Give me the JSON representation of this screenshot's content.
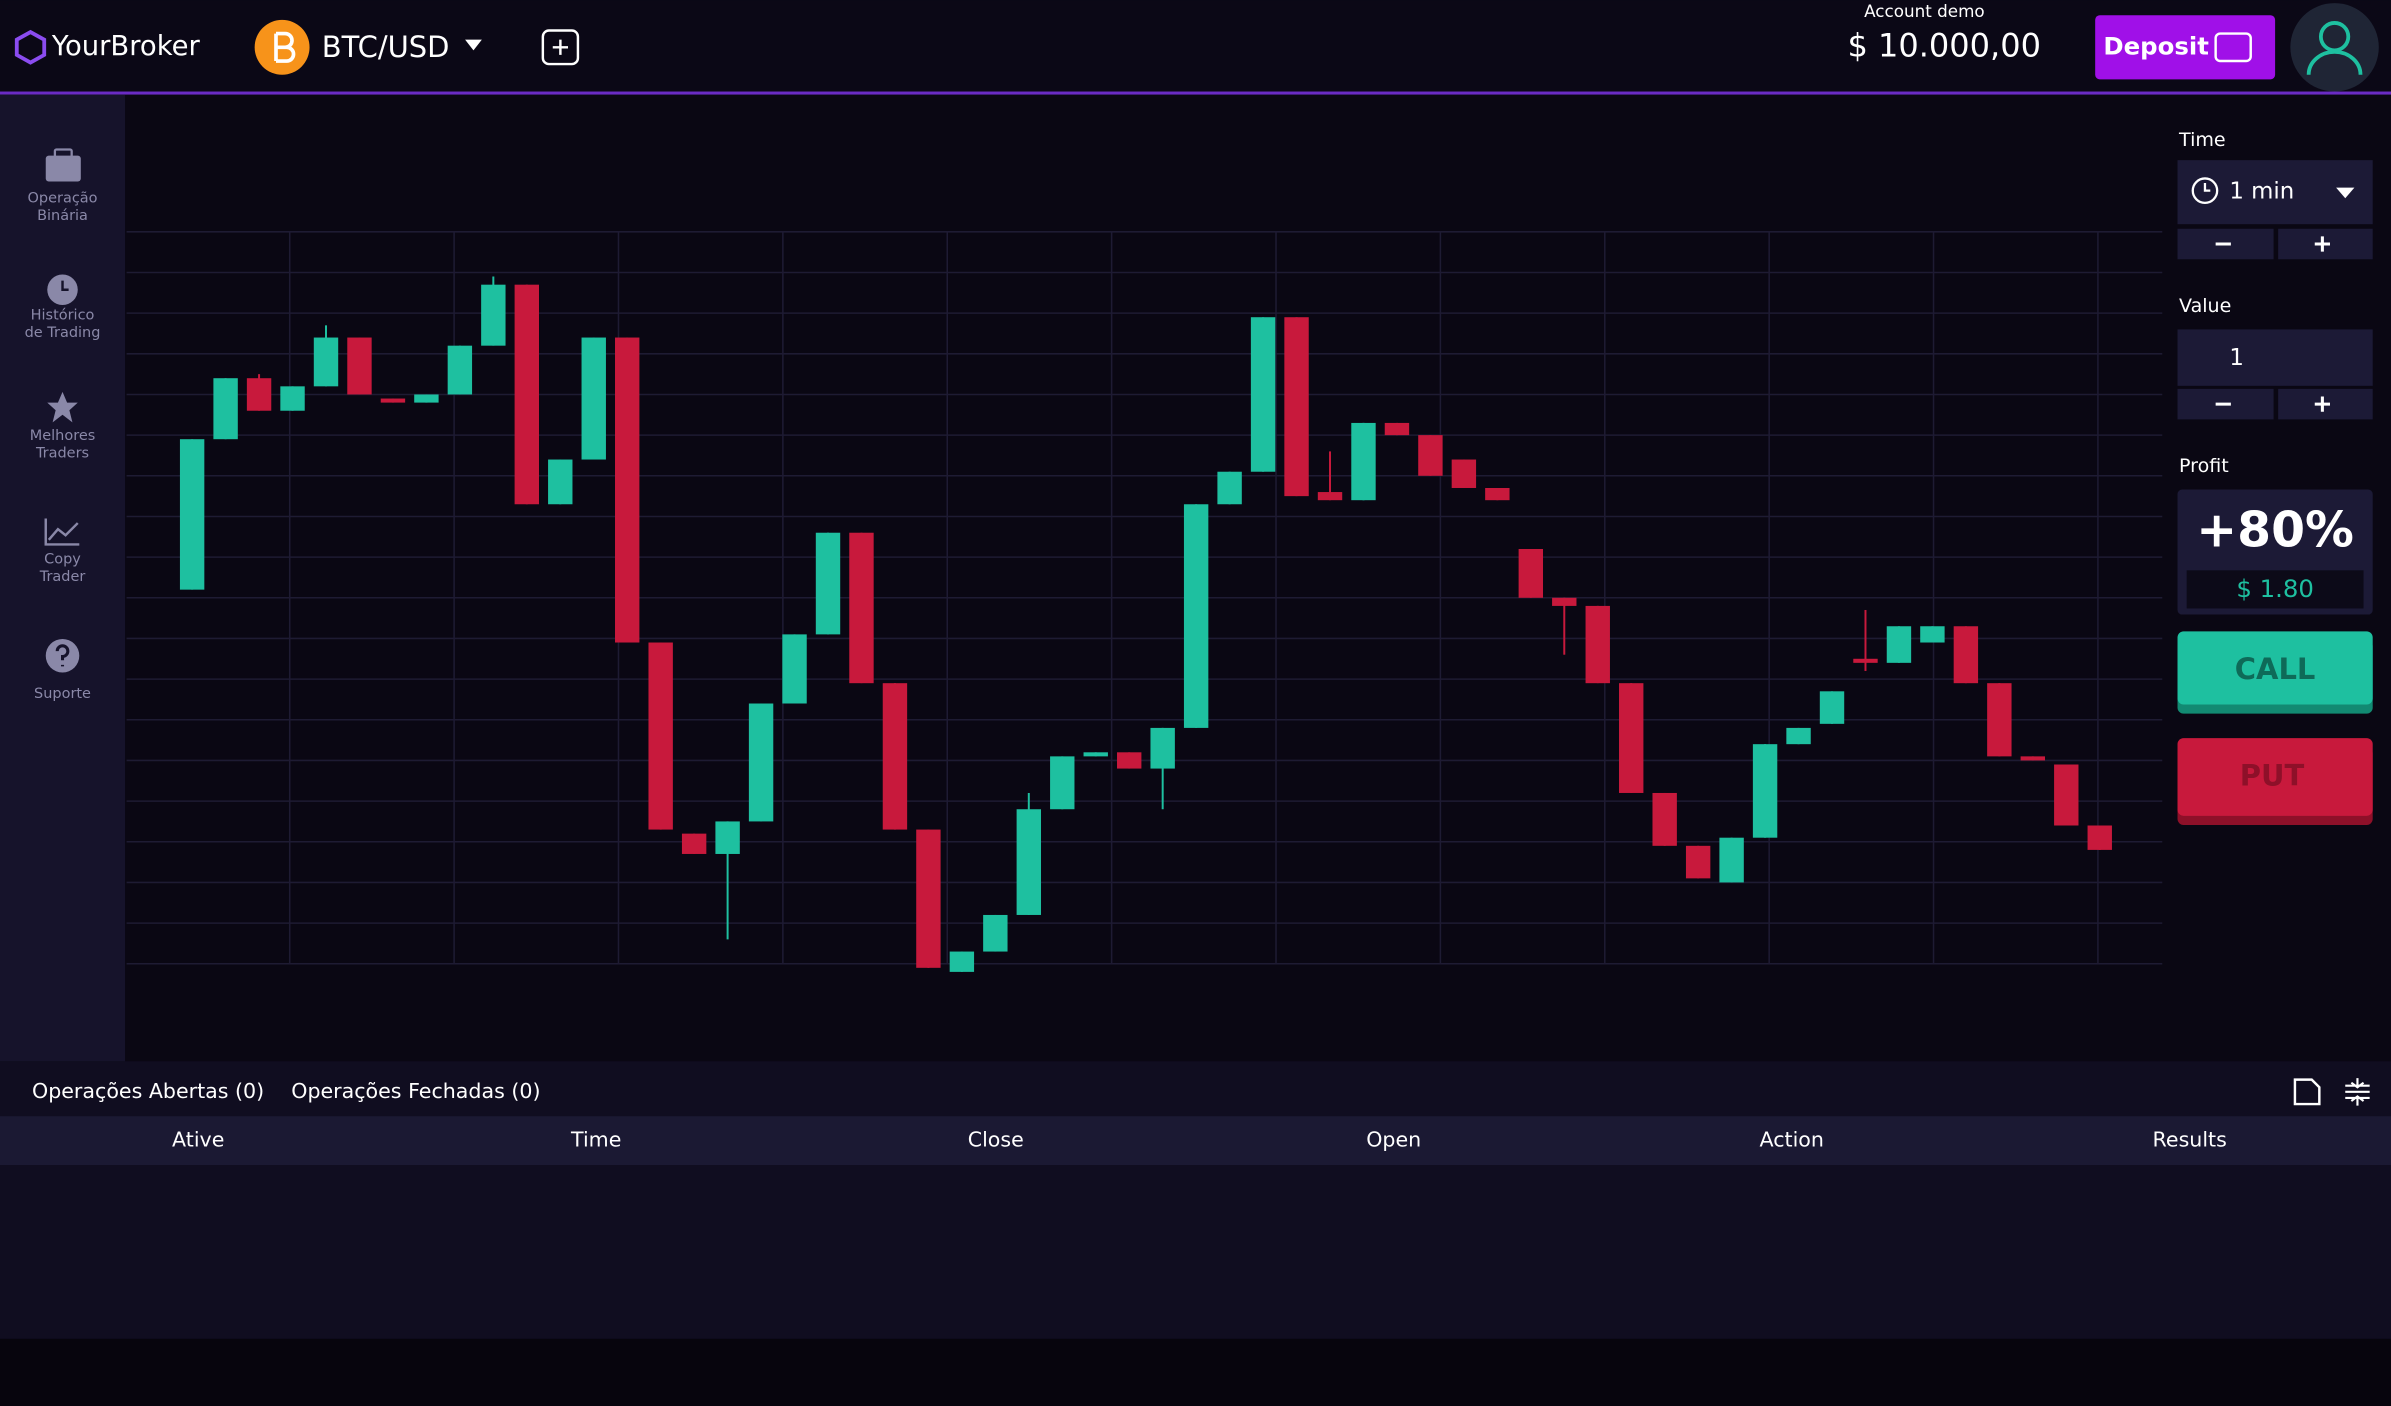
{
  "header": {
    "brand": "YourBroker",
    "asset": "BTC/USD",
    "account_label": "Account demo",
    "balance": "$ 10.000,00",
    "deposit": "Deposit"
  },
  "sidebar": [
    {
      "label": [
        "Operação",
        "Binária"
      ]
    },
    {
      "label": [
        "Histórico",
        "de Trading"
      ]
    },
    {
      "label": [
        "Melhores",
        "Traders"
      ]
    },
    {
      "label": [
        "Copy",
        "Trader"
      ]
    },
    {
      "label": [
        "Suporte"
      ]
    }
  ],
  "chart_data": {
    "type": "candlestick",
    "ylim": [
      0,
      18
    ],
    "grid": true,
    "up_color": "#1ec0a0",
    "down_color": "#c8193c",
    "open": [
      9.2,
      12.9,
      14.4,
      13.6,
      14.2,
      15.4,
      13.9,
      13.8,
      14.0,
      15.2,
      16.7,
      11.3,
      12.4,
      15.4,
      7.9,
      3.2,
      2.7,
      3.5,
      6.4,
      8.1,
      10.6,
      6.9,
      3.3,
      -0.2,
      0.3,
      1.2,
      3.8,
      5.1,
      5.2,
      4.8,
      5.8,
      11.3,
      12.1,
      15.9,
      11.6,
      11.4,
      13.3,
      13.0,
      12.4,
      11.7,
      10.2,
      9.0,
      8.8,
      6.9,
      4.2,
      2.9,
      2.0,
      3.1,
      5.4,
      5.9,
      7.5,
      7.4,
      7.9,
      8.3,
      6.9,
      5.1,
      4.9,
      3.4
    ],
    "high": [
      12.9,
      14.4,
      14.5,
      14.2,
      15.7,
      15.4,
      13.9,
      14.0,
      15.2,
      16.9,
      16.7,
      12.4,
      15.4,
      15.4,
      7.9,
      3.2,
      3.5,
      6.4,
      8.1,
      10.6,
      10.6,
      6.9,
      3.3,
      0.3,
      1.2,
      4.2,
      5.1,
      5.2,
      5.2,
      5.8,
      11.3,
      12.1,
      15.9,
      15.9,
      12.6,
      13.3,
      13.3,
      13.0,
      12.4,
      11.7,
      10.2,
      9.0,
      8.8,
      6.9,
      4.2,
      2.9,
      3.1,
      5.4,
      5.8,
      6.7,
      8.7,
      8.3,
      8.3,
      8.3,
      6.9,
      5.1,
      4.9,
      3.4
    ],
    "low": [
      9.2,
      12.9,
      13.6,
      13.6,
      14.2,
      14.0,
      13.8,
      13.8,
      14.0,
      15.2,
      11.3,
      11.3,
      12.4,
      7.9,
      3.3,
      2.7,
      0.6,
      3.5,
      6.4,
      8.1,
      6.9,
      3.3,
      -0.1,
      -0.2,
      0.3,
      1.2,
      3.8,
      5.1,
      4.8,
      3.8,
      5.8,
      11.3,
      12.1,
      11.5,
      11.4,
      11.4,
      13.0,
      12.0,
      11.7,
      11.4,
      9.0,
      7.6,
      6.9,
      4.2,
      2.9,
      2.1,
      2.0,
      3.1,
      5.4,
      5.9,
      7.2,
      7.4,
      7.9,
      6.9,
      5.1,
      5.0,
      3.4,
      2.8
    ],
    "close": [
      12.9,
      14.4,
      13.6,
      14.2,
      15.4,
      14.0,
      13.8,
      14.0,
      15.2,
      16.7,
      11.3,
      12.4,
      15.4,
      7.9,
      3.3,
      2.7,
      3.5,
      6.4,
      8.1,
      10.6,
      6.9,
      3.3,
      -0.1,
      0.3,
      1.2,
      3.8,
      5.1,
      5.2,
      4.8,
      5.8,
      11.3,
      12.1,
      15.9,
      11.5,
      11.4,
      13.3,
      13.0,
      12.0,
      11.7,
      11.4,
      9.0,
      8.8,
      6.9,
      4.2,
      2.9,
      2.1,
      3.1,
      5.4,
      5.8,
      6.7,
      7.4,
      8.3,
      8.3,
      6.9,
      5.1,
      5.0,
      3.4,
      2.8
    ]
  },
  "trade_panel": {
    "time_label": "Time",
    "time_value": "1 min",
    "value_label": "Value",
    "value": "1",
    "profit_label": "Profit",
    "profit_percent": "+80%",
    "profit_amount": "$ 1.80",
    "call": "CALL",
    "put": "PUT"
  },
  "operations": {
    "tabs": [
      "Operações Abertas (0)",
      "Operações Fechadas (0)"
    ],
    "columns": [
      "Ative",
      "Time",
      "Close",
      "Open",
      "Action",
      "Results"
    ]
  }
}
